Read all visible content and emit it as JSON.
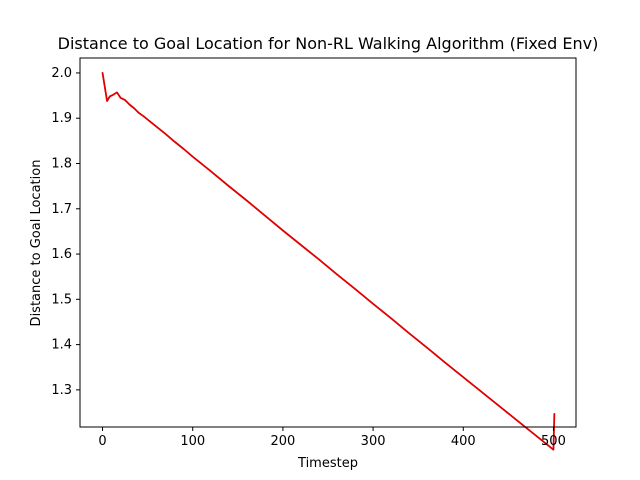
{
  "chart_data": {
    "type": "line",
    "title": "Distance to Goal Location for Non-RL Walking Algorithm (Fixed Env)",
    "xlabel": "Timestep",
    "ylabel": "Distance to Goal Location",
    "xlim": [
      -25,
      525
    ],
    "ylim": [
      1.218,
      2.033
    ],
    "xticks": [
      0,
      100,
      200,
      300,
      400,
      500
    ],
    "yticks": [
      1.3,
      1.4,
      1.5,
      1.6,
      1.7,
      1.8,
      1.9,
      2.0
    ],
    "ytick_labels": [
      "1.3",
      "1.4",
      "1.5",
      "1.6",
      "1.7",
      "1.8",
      "1.9",
      "2.0"
    ],
    "grid": false,
    "series": [
      {
        "color": "#e00000",
        "x": [
          0,
          5,
          8,
          12,
          16,
          20,
          25,
          30,
          35,
          40,
          45,
          50,
          60,
          70,
          80,
          90,
          100,
          120,
          140,
          160,
          180,
          200,
          220,
          240,
          260,
          280,
          300,
          320,
          340,
          360,
          380,
          400,
          420,
          440,
          460,
          480,
          490,
          500,
          501
        ],
        "y": [
          2.0,
          1.938,
          1.948,
          1.952,
          1.957,
          1.945,
          1.94,
          1.93,
          1.922,
          1.912,
          1.905,
          1.897,
          1.881,
          1.865,
          1.848,
          1.832,
          1.815,
          1.783,
          1.75,
          1.718,
          1.685,
          1.652,
          1.62,
          1.588,
          1.555,
          1.523,
          1.49,
          1.458,
          1.425,
          1.393,
          1.36,
          1.328,
          1.296,
          1.264,
          1.232,
          1.2,
          1.184,
          1.168,
          1.247
        ]
      }
    ]
  }
}
